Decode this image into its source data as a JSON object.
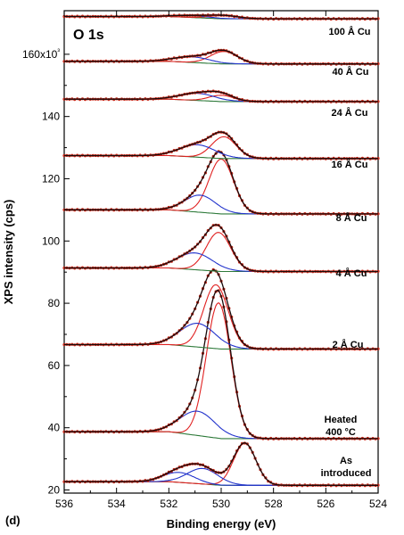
{
  "panel_label": "(d)",
  "chart_data": {
    "type": "line",
    "title": "O 1s",
    "xlabel": "Binding energy (eV)",
    "ylabel": "XPS intensity (cps)",
    "xlim": [
      536,
      524
    ],
    "ylim": [
      19,
      174
    ],
    "x_ticks": [
      536,
      534,
      532,
      530,
      528,
      526,
      524
    ],
    "x_tick_labels": [
      "536",
      "534",
      "532",
      "530",
      "528",
      "526",
      "524"
    ],
    "y_ticks": [
      20,
      40,
      60,
      80,
      100,
      120,
      140,
      160
    ],
    "y_tick_labels": [
      "20",
      "40",
      "60",
      "80",
      "100",
      "120",
      "140",
      "160x10³"
    ],
    "grid": false,
    "legend": "none",
    "colors": {
      "data": "#c62a1b",
      "envelope": "#1a0a0a",
      "component_low_be": "#e02020",
      "component_high_be": "#2233cc",
      "background": "#2e7a3a"
    },
    "series": [
      {
        "name": "As introduced",
        "baseline": 21.5,
        "components": [
          {
            "center": 529.1,
            "height": 13.5,
            "fwhm": 1.0
          },
          {
            "center": 530.7,
            "height": 5.0,
            "fwhm": 1.4
          },
          {
            "center": 531.6,
            "height": 3.2,
            "fwhm": 1.4
          }
        ]
      },
      {
        "name": "Heated 400 °C",
        "baseline": 36.5,
        "components": [
          {
            "center": 530.1,
            "height": 43.5,
            "fwhm": 1.1
          },
          {
            "center": 530.9,
            "height": 7.8,
            "fwhm": 1.6
          }
        ]
      },
      {
        "name": "2 Å Cu",
        "baseline": 65.3,
        "components": [
          {
            "center": 530.2,
            "height": 20.5,
            "fwhm": 1.1
          },
          {
            "center": 530.9,
            "height": 7.6,
            "fwhm": 1.6
          }
        ]
      },
      {
        "name": "4 Å Cu",
        "baseline": 90.2,
        "components": [
          {
            "center": 530.1,
            "height": 12.5,
            "fwhm": 1.1
          },
          {
            "center": 531.0,
            "height": 5.4,
            "fwhm": 1.6
          }
        ]
      },
      {
        "name": "8 Å Cu",
        "baseline": 108.7,
        "components": [
          {
            "center": 530.0,
            "height": 17.6,
            "fwhm": 1.1
          },
          {
            "center": 530.8,
            "height": 5.5,
            "fwhm": 1.4
          }
        ]
      },
      {
        "name": "16 Å Cu",
        "baseline": 126.5,
        "components": [
          {
            "center": 529.9,
            "height": 7.0,
            "fwhm": 1.1
          },
          {
            "center": 530.9,
            "height": 4.0,
            "fwhm": 1.6
          }
        ]
      },
      {
        "name": "24 Å Cu",
        "baseline": 144.8,
        "components": [
          {
            "center": 530.0,
            "height": 2.0,
            "fwhm": 1.1
          },
          {
            "center": 530.9,
            "height": 2.3,
            "fwhm": 1.6
          }
        ]
      },
      {
        "name": "40 Å Cu",
        "baseline": 156.9,
        "components": [
          {
            "center": 529.9,
            "height": 4.0,
            "fwhm": 1.2
          },
          {
            "center": 531.1,
            "height": 1.8,
            "fwhm": 1.6
          }
        ]
      },
      {
        "name": "100 Å Cu",
        "baseline": 171.4,
        "components": [
          {
            "center": 529.9,
            "height": 1.0,
            "fwhm": 1.3
          },
          {
            "center": 531.1,
            "height": 0.6,
            "fwhm": 1.6
          }
        ]
      }
    ]
  }
}
